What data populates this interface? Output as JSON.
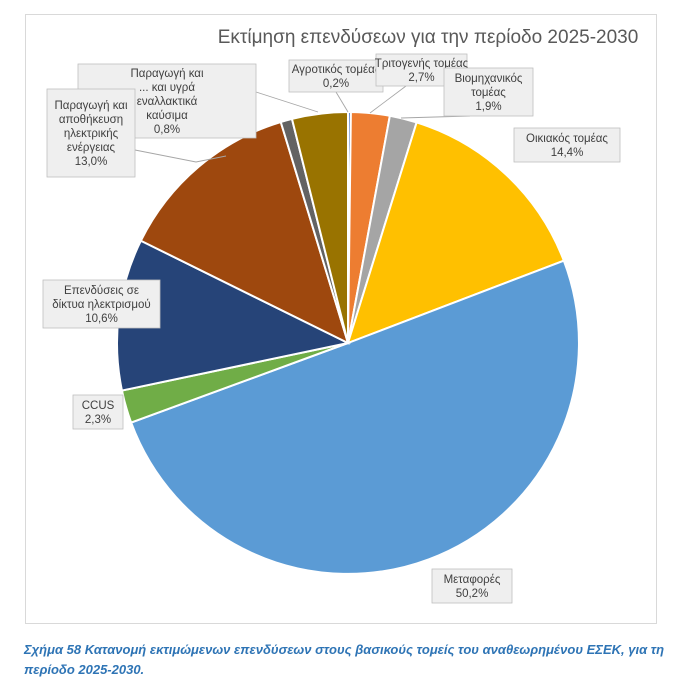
{
  "chart_data": {
    "type": "pie",
    "title": "Εκτίμηση επενδύσεων για την περίοδο 2025-2030",
    "slices": [
      {
        "label_lines": [
          "Αγροτικός τομέας"
        ],
        "value": 0.2,
        "value_label": "0,2%",
        "color": "#4472c4"
      },
      {
        "label_lines": [
          "Τριτογενής τομέας"
        ],
        "value": 2.7,
        "value_label": "2,7%",
        "color": "#ed7d31"
      },
      {
        "label_lines": [
          "Βιομηχανικός",
          "τομέας"
        ],
        "value": 1.9,
        "value_label": "1,9%",
        "color": "#a5a5a5"
      },
      {
        "label_lines": [
          "Οικιακός τομέας"
        ],
        "value": 14.4,
        "value_label": "14,4%",
        "color": "#ffc000"
      },
      {
        "label_lines": [
          "Μεταφορές"
        ],
        "value": 50.2,
        "value_label": "50,2%",
        "color": "#5b9bd5"
      },
      {
        "label_lines": [
          "CCUS"
        ],
        "value": 2.3,
        "value_label": "2,3%",
        "color": "#70ad47"
      },
      {
        "label_lines": [
          "Επενδύσεις σε",
          "δίκτυα ηλεκτρισμού"
        ],
        "value": 10.6,
        "value_label": "10,6%",
        "color": "#264478"
      },
      {
        "label_lines": [
          "Παραγωγή και",
          "αποθήκευση",
          "ηλεκτρικής",
          "ενέργειας"
        ],
        "value": 13.0,
        "value_label": "13,0%",
        "color": "#9e480e"
      },
      {
        "label_lines": [
          "Παραγωγή και",
          "... και υγρά",
          "εναλλακτικά",
          "καύσιμα"
        ],
        "value": 0.8,
        "value_label": "0,8%",
        "color": "#636363"
      },
      {
        "label_lines": [],
        "value": 3.9,
        "value_label": "",
        "color": "#997300"
      }
    ],
    "legend": "none"
  },
  "caption": "Σχήμα 58 Κατανομή εκτιμώμενων επενδύσεων στους βασικούς τομείς του αναθεωρημένου ΕΣΕΚ, για τη περίοδο 2025-2030."
}
